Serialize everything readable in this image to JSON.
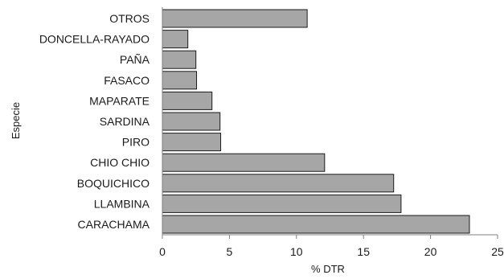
{
  "chart_data": {
    "type": "bar",
    "orientation": "horizontal",
    "categories": [
      "OTROS",
      "DONCELLA-RAYADO",
      "PAÑA",
      "FASACO",
      "MAPARATE",
      "SARDINA",
      "PIRO",
      "CHIO CHIO",
      "BOQUICHICO",
      "LLAMBINA",
      "CARACHAMA"
    ],
    "values": [
      10.8,
      1.9,
      2.5,
      2.55,
      3.7,
      4.3,
      4.35,
      12.1,
      17.25,
      17.8,
      22.9
    ],
    "xlabel": "% DTR",
    "ylabel": "Especie",
    "xlim": [
      0,
      25
    ],
    "xticks": [
      "0",
      "5",
      "10",
      "15",
      "20",
      "25"
    ],
    "grid": false,
    "bar_color": "#a6a6a6",
    "bar_edge_color": "#1a1a1a"
  }
}
